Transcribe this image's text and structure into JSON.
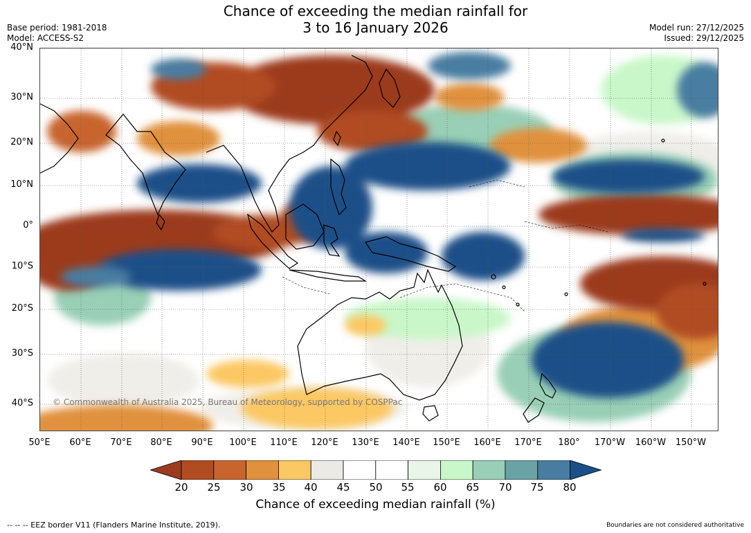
{
  "title": {
    "line1": "Chance of exceeding the median rainfall for",
    "line2": "3 to 16 January 2026"
  },
  "meta": {
    "base_period": "Base period: 1981-2018",
    "model": "Model: ACCESS-S2",
    "model_run": "Model run: 27/12/2025",
    "issued": "Issued: 29/12/2025"
  },
  "map": {
    "lat_labels": [
      "40°N",
      "30°N",
      "20°N",
      "10°N",
      "0°",
      "10°S",
      "20°S",
      "30°S",
      "40°S"
    ],
    "lon_labels": [
      "50°E",
      "60°E",
      "70°E",
      "80°E",
      "90°E",
      "100°E",
      "110°E",
      "120°E",
      "130°E",
      "140°E",
      "150°E",
      "160°E",
      "170°E",
      "180°",
      "170°W",
      "160°W",
      "150°W"
    ],
    "copyright": "© Commonwealth of Australia 2025, Bureau of Meteorology, supported by COSPPac"
  },
  "legend": {
    "ticks": [
      "20",
      "25",
      "30",
      "35",
      "40",
      "45",
      "50",
      "55",
      "60",
      "65",
      "70",
      "75",
      "80"
    ],
    "colors": [
      "#9c3a1f",
      "#b14c22",
      "#c8652e",
      "#e0913e",
      "#fcc864",
      "#eceae4",
      "#ffffff",
      "#ffffff",
      "#e9f5e9",
      "#c9f7c9",
      "#99cfb6",
      "#6aa3a5",
      "#487da1",
      "#1a4f88"
    ],
    "title": "Chance of exceeding median rainfall (%)"
  },
  "footer": {
    "eez": "-- --  -- EEZ border V11 (Flanders Marine Institute, 2019).",
    "boundaries": "Boundaries are not considered authoritative"
  }
}
